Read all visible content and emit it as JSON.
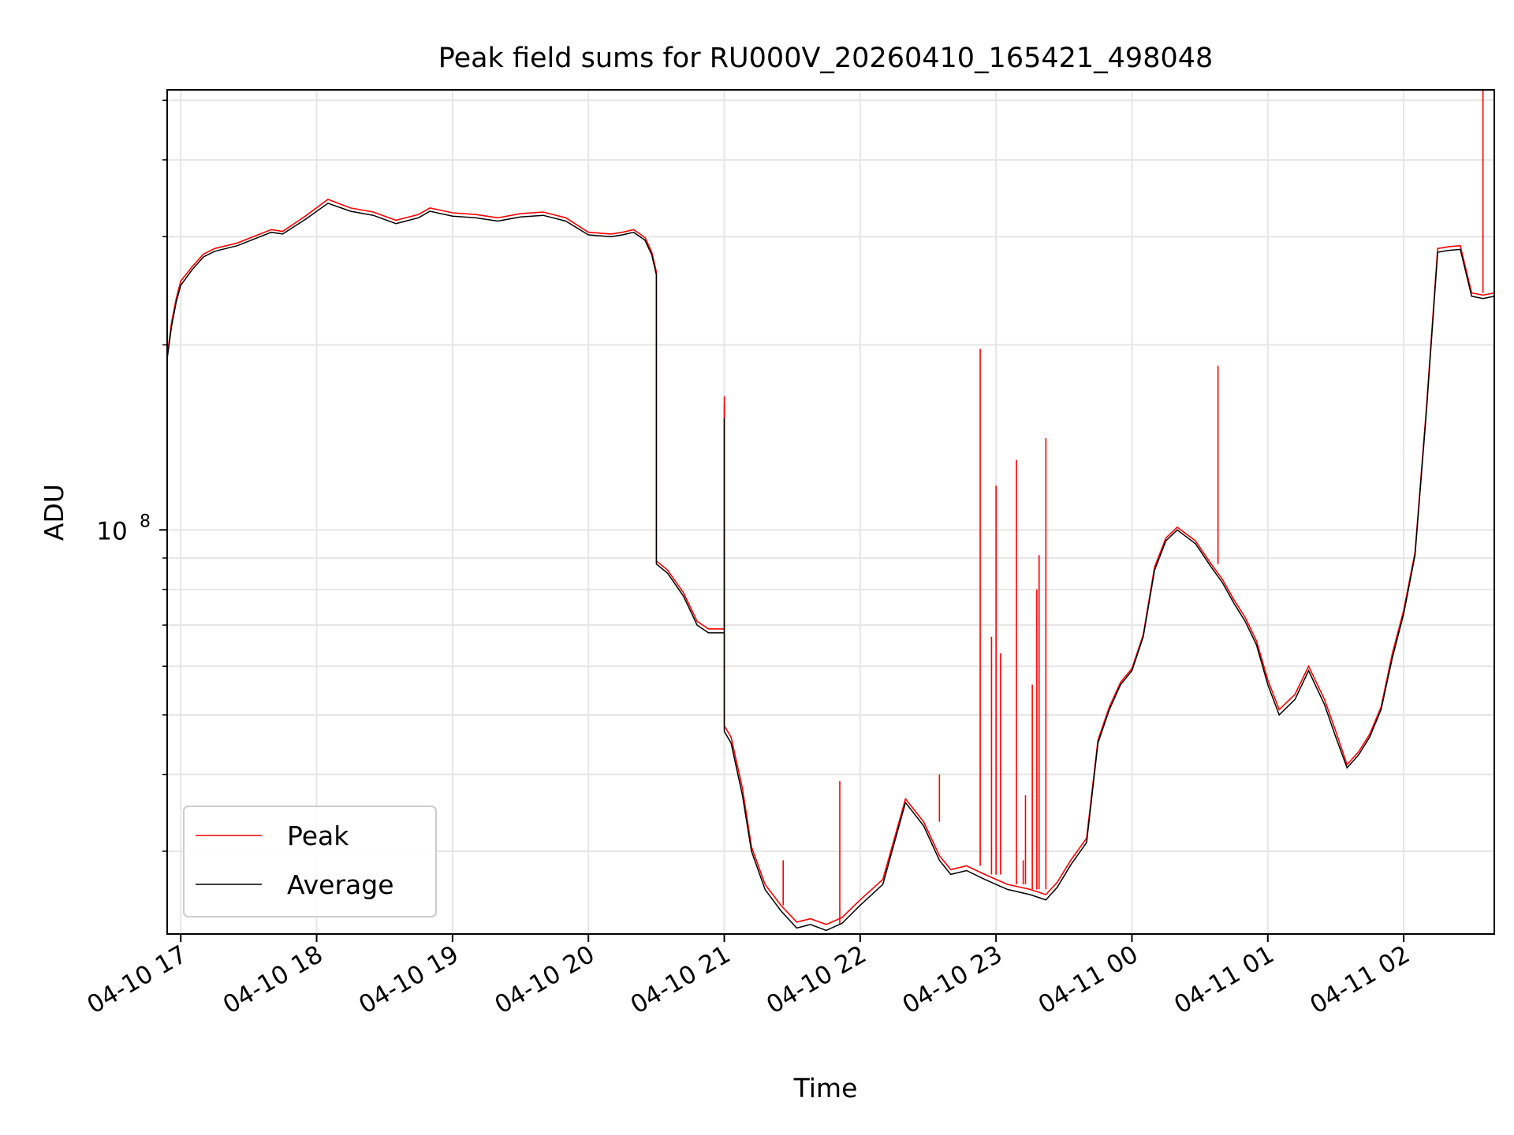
{
  "chart_data": {
    "type": "line",
    "title": "Peak field sums for RU000V_20260410_165421_498048",
    "xlabel": "Time",
    "ylabel": "ADU",
    "yscale": "log",
    "ylim": [
      22000000,
      520000000
    ],
    "xlim": [
      "2026-04-10 16:54",
      "2026-04-11 02:40"
    ],
    "x_ticks": [
      "04-10 17",
      "04-10 18",
      "04-10 19",
      "04-10 20",
      "04-10 21",
      "04-10 22",
      "04-10 23",
      "04-11 00",
      "04-11 01",
      "04-11 02"
    ],
    "y_ticks": [
      {
        "label_base": "10",
        "label_exp": "8",
        "value": 100000000
      }
    ],
    "grid": true,
    "legend": "lower-left",
    "colors": {
      "Peak": "#ff0000",
      "Average": "#000000"
    },
    "series": [
      {
        "name": "Average",
        "x": [
          "2026-04-10 16:54",
          "2026-04-10 16:56",
          "2026-04-10 16:58",
          "2026-04-10 17:00",
          "2026-04-10 17:05",
          "2026-04-10 17:10",
          "2026-04-10 17:15",
          "2026-04-10 17:25",
          "2026-04-10 17:35",
          "2026-04-10 17:40",
          "2026-04-10 17:45",
          "2026-04-10 17:55",
          "2026-04-10 18:05",
          "2026-04-10 18:15",
          "2026-04-10 18:25",
          "2026-04-10 18:35",
          "2026-04-10 18:45",
          "2026-04-10 18:50",
          "2026-04-10 19:00",
          "2026-04-10 19:10",
          "2026-04-10 19:20",
          "2026-04-10 19:30",
          "2026-04-10 19:40",
          "2026-04-10 19:50",
          "2026-04-10 20:00",
          "2026-04-10 20:10",
          "2026-04-10 20:15",
          "2026-04-10 20:20",
          "2026-04-10 20:25",
          "2026-04-10 20:28",
          "2026-04-10 20:30",
          "2026-04-10 20:30",
          "2026-04-10 20:35",
          "2026-04-10 20:42",
          "2026-04-10 20:48",
          "2026-04-10 20:53",
          "2026-04-10 21:00",
          "2026-04-10 21:00",
          "2026-04-10 21:00",
          "2026-04-10 21:03",
          "2026-04-10 21:08",
          "2026-04-10 21:12",
          "2026-04-10 21:18",
          "2026-04-10 21:25",
          "2026-04-10 21:32",
          "2026-04-10 21:38",
          "2026-04-10 21:45",
          "2026-04-10 21:52",
          "2026-04-10 22:00",
          "2026-04-10 22:10",
          "2026-04-10 22:20",
          "2026-04-10 22:28",
          "2026-04-10 22:35",
          "2026-04-10 22:40",
          "2026-04-10 22:47",
          "2026-04-10 22:55",
          "2026-04-10 23:05",
          "2026-04-10 23:15",
          "2026-04-10 23:22",
          "2026-04-10 23:27",
          "2026-04-10 23:33",
          "2026-04-10 23:40",
          "2026-04-10 23:45",
          "2026-04-10 23:50",
          "2026-04-10 23:55",
          "2026-04-11 00:00",
          "2026-04-11 00:05",
          "2026-04-11 00:10",
          "2026-04-11 00:15",
          "2026-04-11 00:20",
          "2026-04-11 00:28",
          "2026-04-11 00:35",
          "2026-04-11 00:40",
          "2026-04-11 00:45",
          "2026-04-11 00:50",
          "2026-04-11 00:55",
          "2026-04-11 01:00",
          "2026-04-11 01:05",
          "2026-04-11 01:12",
          "2026-04-11 01:18",
          "2026-04-11 01:25",
          "2026-04-11 01:30",
          "2026-04-11 01:35",
          "2026-04-11 01:40",
          "2026-04-11 01:45",
          "2026-04-11 01:50",
          "2026-04-11 01:55",
          "2026-04-11 02:00",
          "2026-04-11 02:05",
          "2026-04-11 02:10",
          "2026-04-11 02:15",
          "2026-04-11 02:20",
          "2026-04-11 02:25",
          "2026-04-11 02:30",
          "2026-04-11 02:35",
          "2026-04-11 02:40"
        ],
        "y": [
          190000000,
          215000000,
          235000000,
          250000000,
          265000000,
          278000000,
          284000000,
          290000000,
          300000000,
          305000000,
          303000000,
          320000000,
          340000000,
          330000000,
          325000000,
          315000000,
          322000000,
          330000000,
          324000000,
          322000000,
          318000000,
          323000000,
          325000000,
          318000000,
          302000000,
          300000000,
          302000000,
          305000000,
          296000000,
          280000000,
          260000000,
          88000000,
          85000000,
          78000000,
          70000000,
          68000000,
          68000000,
          152000000,
          47000000,
          45000000,
          37000000,
          30000000,
          26000000,
          24000000,
          22500000,
          22800000,
          22300000,
          22900000,
          24500000,
          26500000,
          36000000,
          33000000,
          29000000,
          27500000,
          27900000,
          27000000,
          26000000,
          25500000,
          25000000,
          26200000,
          28500000,
          31000000,
          45000000,
          51000000,
          56000000,
          59000000,
          67000000,
          86000000,
          96000000,
          100000000,
          95000000,
          87000000,
          82000000,
          76000000,
          71000000,
          65000000,
          56000000,
          50000000,
          53000000,
          59000000,
          52000000,
          46000000,
          41000000,
          43000000,
          46000000,
          51000000,
          62000000,
          73000000,
          91000000,
          155000000,
          283000000,
          285000000,
          286000000,
          240000000,
          238000000,
          240000000
        ]
      },
      {
        "name": "Peak",
        "x": [
          "2026-04-10 16:54",
          "2026-04-10 16:56",
          "2026-04-10 16:58",
          "2026-04-10 17:00",
          "2026-04-10 17:05",
          "2026-04-10 17:10",
          "2026-04-10 17:15",
          "2026-04-10 17:25",
          "2026-04-10 17:35",
          "2026-04-10 17:40",
          "2026-04-10 17:45",
          "2026-04-10 17:55",
          "2026-04-10 18:05",
          "2026-04-10 18:15",
          "2026-04-10 18:25",
          "2026-04-10 18:35",
          "2026-04-10 18:45",
          "2026-04-10 18:50",
          "2026-04-10 19:00",
          "2026-04-10 19:10",
          "2026-04-10 19:20",
          "2026-04-10 19:30",
          "2026-04-10 19:40",
          "2026-04-10 19:50",
          "2026-04-10 20:00",
          "2026-04-10 20:10",
          "2026-04-10 20:15",
          "2026-04-10 20:20",
          "2026-04-10 20:25",
          "2026-04-10 20:28",
          "2026-04-10 20:30",
          "2026-04-10 20:30",
          "2026-04-10 20:35",
          "2026-04-10 20:42",
          "2026-04-10 20:48",
          "2026-04-10 20:53",
          "2026-04-10 21:00",
          "2026-04-10 21:00",
          "2026-04-10 21:00",
          "2026-04-10 21:03",
          "2026-04-10 21:08",
          "2026-04-10 21:12",
          "2026-04-10 21:18",
          "2026-04-10 21:25",
          "2026-04-10 21:32",
          "2026-04-10 21:38",
          "2026-04-10 21:45",
          "2026-04-10 21:52",
          "2026-04-10 22:00",
          "2026-04-10 22:10",
          "2026-04-10 22:20",
          "2026-04-10 22:28",
          "2026-04-10 22:35",
          "2026-04-10 22:40",
          "2026-04-10 22:47",
          "2026-04-10 22:55",
          "2026-04-10 23:05",
          "2026-04-10 23:15",
          "2026-04-10 23:22",
          "2026-04-10 23:27",
          "2026-04-10 23:33",
          "2026-04-10 23:40",
          "2026-04-10 23:45",
          "2026-04-10 23:50",
          "2026-04-10 23:55",
          "2026-04-11 00:00",
          "2026-04-11 00:05",
          "2026-04-11 00:10",
          "2026-04-11 00:15",
          "2026-04-11 00:20",
          "2026-04-11 00:28",
          "2026-04-11 00:35",
          "2026-04-11 00:40",
          "2026-04-11 00:45",
          "2026-04-11 00:50",
          "2026-04-11 00:55",
          "2026-04-11 01:00",
          "2026-04-11 01:05",
          "2026-04-11 01:12",
          "2026-04-11 01:18",
          "2026-04-11 01:25",
          "2026-04-11 01:30",
          "2026-04-11 01:35",
          "2026-04-11 01:40",
          "2026-04-11 01:45",
          "2026-04-11 01:50",
          "2026-04-11 01:55",
          "2026-04-11 02:00",
          "2026-04-11 02:05",
          "2026-04-11 02:10",
          "2026-04-11 02:15",
          "2026-04-11 02:20",
          "2026-04-11 02:25",
          "2026-04-11 02:30",
          "2026-04-11 02:35",
          "2026-04-11 02:40"
        ],
        "y": [
          192000000,
          218000000,
          238000000,
          254000000,
          268000000,
          281000000,
          287000000,
          293000000,
          303000000,
          308000000,
          306000000,
          324000000,
          345000000,
          334000000,
          329000000,
          319000000,
          326000000,
          334000000,
          328000000,
          326000000,
          322000000,
          327000000,
          329000000,
          322000000,
          305000000,
          303000000,
          305000000,
          308000000,
          299000000,
          283000000,
          263000000,
          89000000,
          86000000,
          79000000,
          71000000,
          69000000,
          69000000,
          160000000,
          48000000,
          46000000,
          38000000,
          30500000,
          26500000,
          24500000,
          23000000,
          23300000,
          22800000,
          23400000,
          25000000,
          27000000,
          36500000,
          33500000,
          29500000,
          28000000,
          28400000,
          27500000,
          26500000,
          26000000,
          25500000,
          26700000,
          29000000,
          31500000,
          45500000,
          51500000,
          56500000,
          59500000,
          67500000,
          87000000,
          97000000,
          101000000,
          96000000,
          88000000,
          83000000,
          77000000,
          72000000,
          66000000,
          57000000,
          51000000,
          54000000,
          60000000,
          53000000,
          47000000,
          41500000,
          43500000,
          46500000,
          51500000,
          63000000,
          74000000,
          92000000,
          157000000,
          287000000,
          289000000,
          290000000,
          243000000,
          241000000,
          243000000
        ],
        "spikes": [
          {
            "x": "2026-04-10 21:00",
            "y": 165000000
          },
          {
            "x": "2026-04-10 21:26",
            "y": 29000000
          },
          {
            "x": "2026-04-10 21:51",
            "y": 39000000
          },
          {
            "x": "2026-04-10 22:35",
            "y": 40000000
          },
          {
            "x": "2026-04-10 22:53",
            "y": 197000000
          },
          {
            "x": "2026-04-10 22:58",
            "y": 67000000
          },
          {
            "x": "2026-04-10 23:00",
            "y": 118000000
          },
          {
            "x": "2026-04-10 23:02",
            "y": 63000000
          },
          {
            "x": "2026-04-10 23:09",
            "y": 130000000
          },
          {
            "x": "2026-04-10 23:12",
            "y": 29000000
          },
          {
            "x": "2026-04-10 23:13",
            "y": 37000000
          },
          {
            "x": "2026-04-10 23:16",
            "y": 56000000
          },
          {
            "x": "2026-04-10 23:18",
            "y": 80000000
          },
          {
            "x": "2026-04-10 23:19",
            "y": 91000000
          },
          {
            "x": "2026-04-10 23:22",
            "y": 141000000
          },
          {
            "x": "2026-04-11 00:38",
            "y": 185000000
          },
          {
            "x": "2026-04-11 02:35",
            "y": 520000000
          }
        ]
      }
    ]
  }
}
